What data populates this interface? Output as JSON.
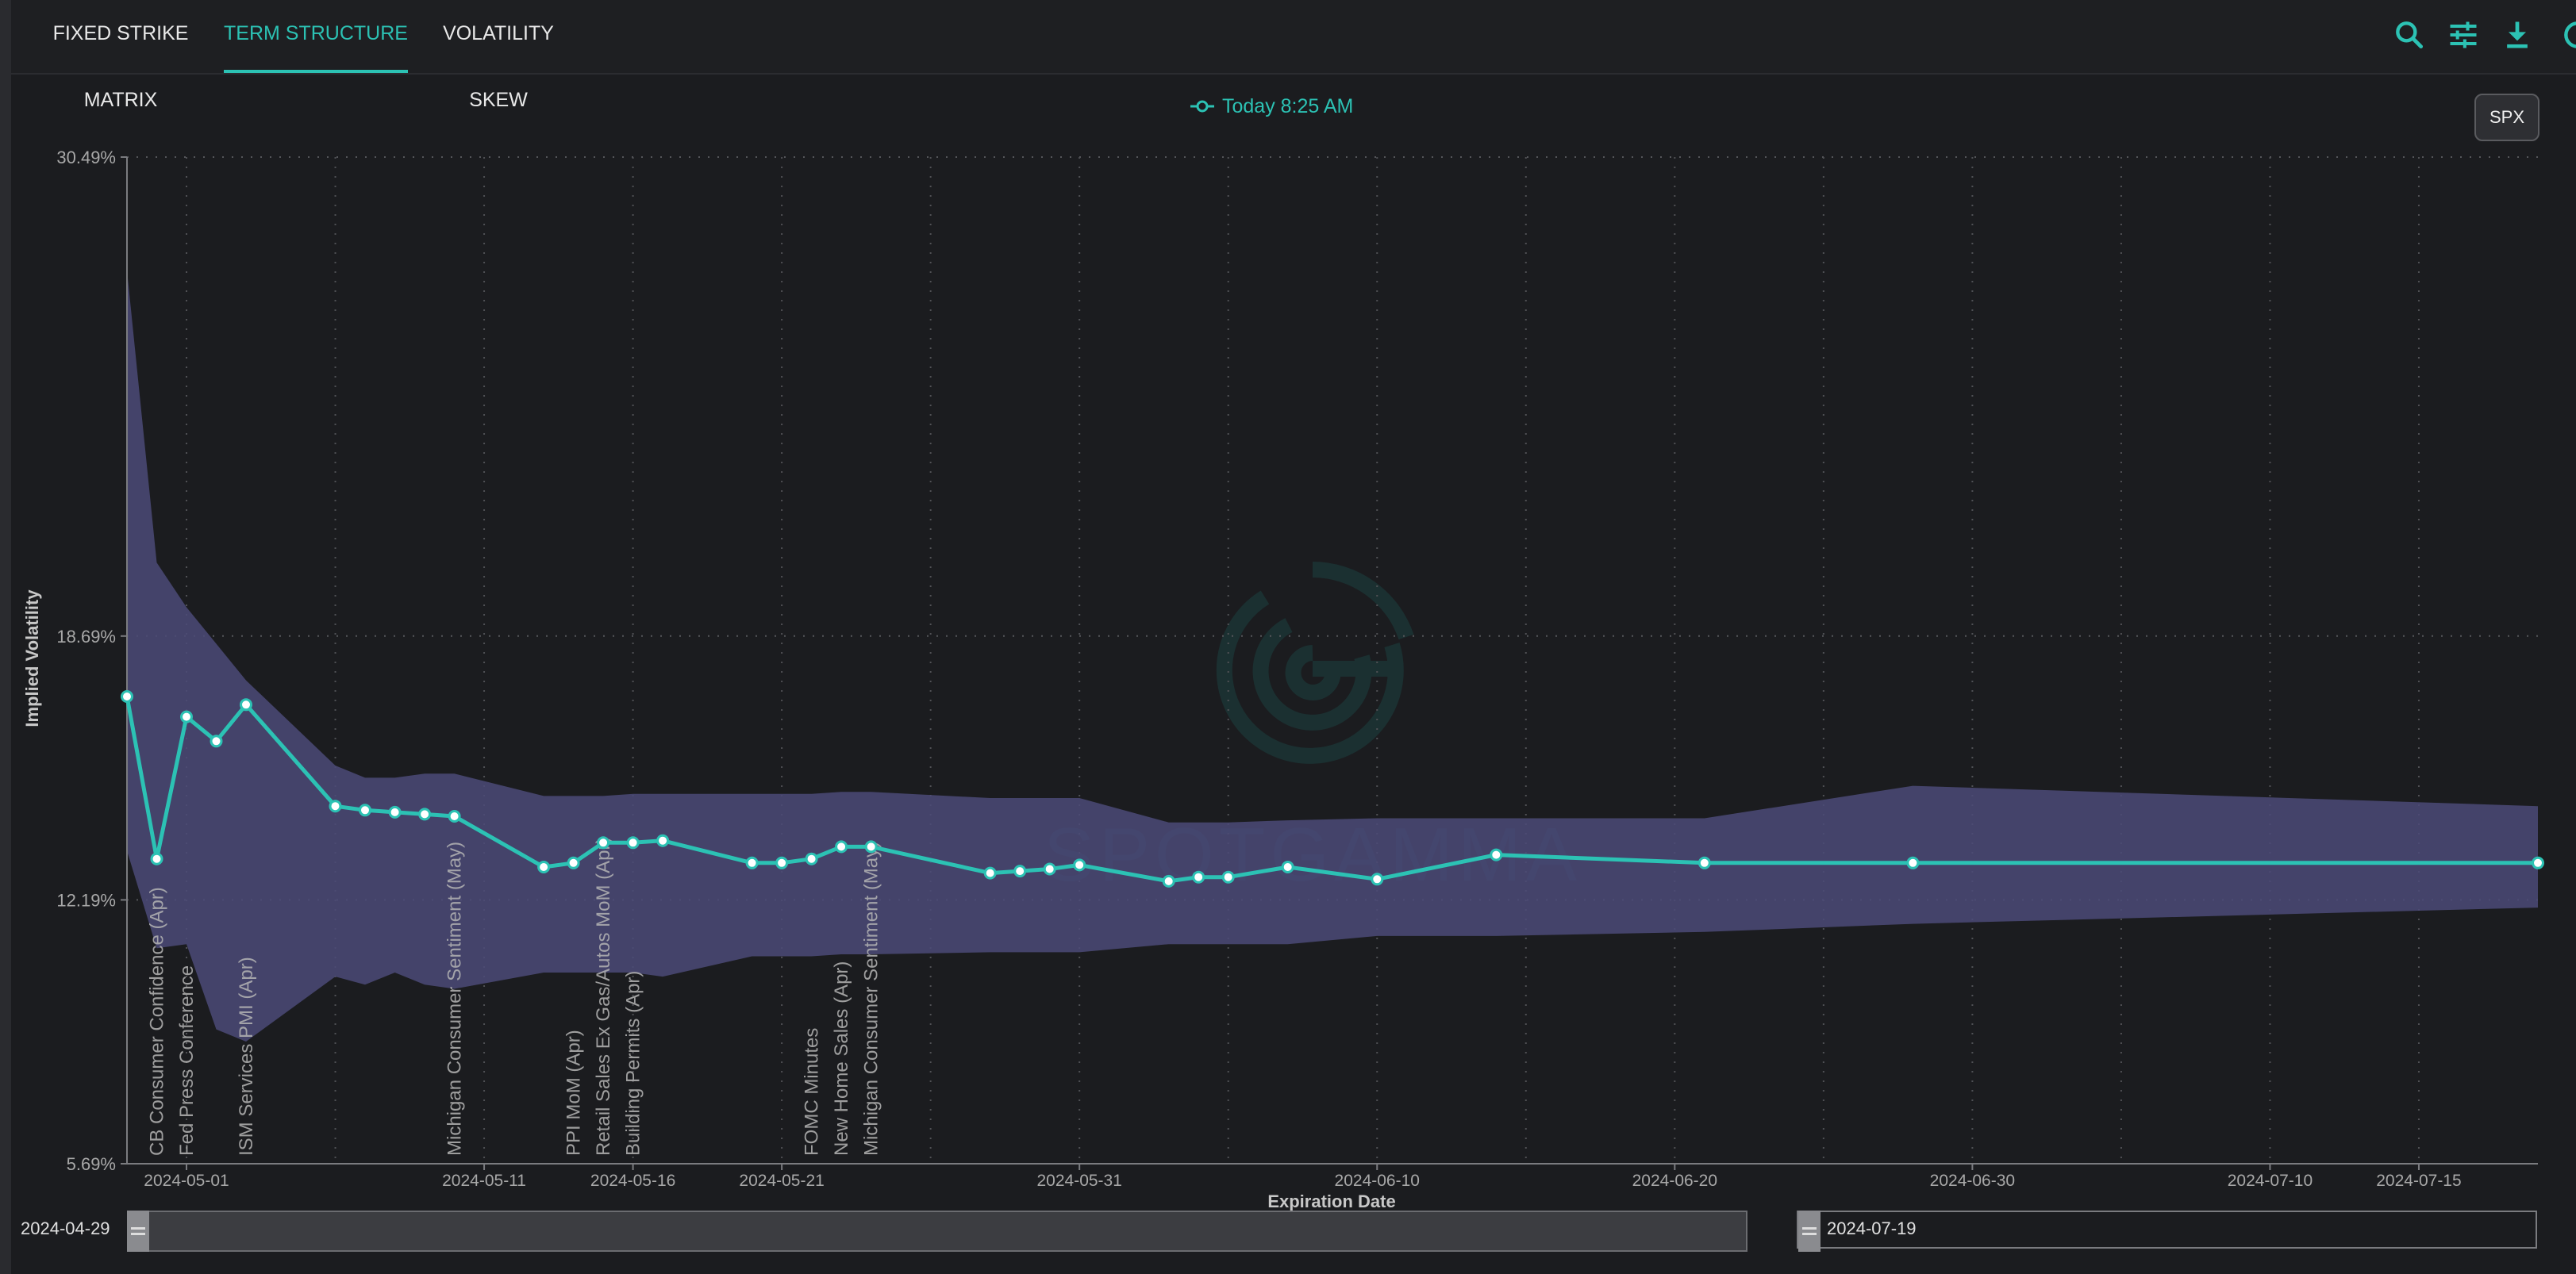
{
  "tabs": [
    {
      "label": "FIXED STRIKE MATRIX",
      "active": false
    },
    {
      "label": "TERM STRUCTURE",
      "active": true
    },
    {
      "label": "VOLATILITY SKEW",
      "active": false
    }
  ],
  "toolbar": {
    "icons": [
      "search-icon",
      "sliders-icon",
      "download-icon",
      "refresh-icon"
    ]
  },
  "legend": {
    "series_label": "Today 8:25 AM"
  },
  "ticker_button": "SPX",
  "watermark": "SPOTGAMMA",
  "range_slider": {
    "start": "2024-04-29",
    "end": "2024-07-19"
  },
  "colors": {
    "accent": "#2cc2b4",
    "band": "#4b4a78",
    "background": "#1b1c1f"
  },
  "chart_data": {
    "type": "line",
    "xlabel": "Expiration Date",
    "ylabel": "Implied Volatility",
    "x_range": [
      "2024-04-29",
      "2024-07-19"
    ],
    "y_range": [
      5.69,
      30.49
    ],
    "y_ticks": [
      "5.69%",
      "12.19%",
      "18.69%",
      "30.49%"
    ],
    "y_tick_values": [
      5.69,
      12.19,
      18.69,
      30.49
    ],
    "x_ticks": [
      {
        "date": "2024-05-01",
        "label": "2024-05-01"
      },
      {
        "date": "2024-05-11",
        "label": "2024-05-11"
      },
      {
        "date": "2024-05-16",
        "label": "2024-05-16"
      },
      {
        "date": "2024-05-21",
        "label": "2024-05-21"
      },
      {
        "date": "2024-05-31",
        "label": "2024-05-31"
      },
      {
        "date": "2024-06-10",
        "label": "2024-06-10"
      },
      {
        "date": "2024-06-20",
        "label": "2024-06-20"
      },
      {
        "date": "2024-06-30",
        "label": "2024-06-30"
      },
      {
        "date": "2024-07-10",
        "label": "2024-07-10"
      },
      {
        "date": "2024-07-15",
        "label": "2024-07-15"
      }
    ],
    "grid": true,
    "series": [
      {
        "name": "Today 8:25 AM",
        "x": [
          "2024-04-29",
          "2024-04-30",
          "2024-05-01",
          "2024-05-02",
          "2024-05-03",
          "2024-05-06",
          "2024-05-07",
          "2024-05-08",
          "2024-05-09",
          "2024-05-10",
          "2024-05-13",
          "2024-05-14",
          "2024-05-15",
          "2024-05-16",
          "2024-05-17",
          "2024-05-20",
          "2024-05-21",
          "2024-05-22",
          "2024-05-23",
          "2024-05-24",
          "2024-05-28",
          "2024-05-29",
          "2024-05-30",
          "2024-05-31",
          "2024-06-03",
          "2024-06-04",
          "2024-06-05",
          "2024-06-07",
          "2024-06-10",
          "2024-06-14",
          "2024-06-21",
          "2024-06-28",
          "2024-07-19"
        ],
        "values": [
          17.2,
          13.2,
          16.7,
          16.1,
          17.0,
          14.5,
          14.4,
          14.35,
          14.3,
          14.25,
          13.0,
          13.1,
          13.6,
          13.6,
          13.65,
          13.1,
          13.1,
          13.2,
          13.5,
          13.5,
          12.85,
          12.9,
          12.95,
          13.05,
          12.65,
          12.75,
          12.75,
          13.0,
          12.7,
          13.3,
          13.1,
          13.1,
          13.1
        ]
      }
    ],
    "band": {
      "x": [
        "2024-04-29",
        "2024-04-30",
        "2024-05-01",
        "2024-05-02",
        "2024-05-03",
        "2024-05-06",
        "2024-05-07",
        "2024-05-08",
        "2024-05-09",
        "2024-05-10",
        "2024-05-13",
        "2024-05-14",
        "2024-05-15",
        "2024-05-16",
        "2024-05-17",
        "2024-05-20",
        "2024-05-21",
        "2024-05-22",
        "2024-05-23",
        "2024-05-24",
        "2024-05-28",
        "2024-05-29",
        "2024-05-30",
        "2024-05-31",
        "2024-06-03",
        "2024-06-04",
        "2024-06-05",
        "2024-06-07",
        "2024-06-10",
        "2024-06-14",
        "2024-06-21",
        "2024-06-28",
        "2024-07-19"
      ],
      "upper": [
        27.7,
        20.5,
        19.4,
        18.5,
        17.6,
        15.5,
        15.2,
        15.2,
        15.3,
        15.3,
        14.75,
        14.75,
        14.75,
        14.8,
        14.8,
        14.8,
        14.8,
        14.8,
        14.85,
        14.85,
        14.7,
        14.7,
        14.7,
        14.7,
        14.1,
        14.1,
        14.1,
        14.15,
        14.2,
        14.2,
        14.2,
        15.0,
        14.5
      ],
      "lower": [
        13.4,
        11.0,
        11.1,
        9.0,
        8.7,
        10.3,
        10.1,
        10.4,
        10.1,
        10.0,
        10.4,
        10.4,
        10.4,
        10.4,
        10.3,
        10.8,
        10.8,
        10.8,
        10.85,
        10.85,
        10.9,
        10.9,
        10.9,
        10.9,
        11.1,
        11.1,
        11.1,
        11.1,
        11.3,
        11.3,
        11.4,
        11.6,
        12.0
      ]
    },
    "events": [
      {
        "date": "2024-04-30",
        "label": "CB Consumer Confidence (Apr)"
      },
      {
        "date": "2024-05-01",
        "label": "Fed Press Conference"
      },
      {
        "date": "2024-05-03",
        "label": "ISM Services PMI (Apr)"
      },
      {
        "date": "2024-05-10",
        "label": "Michigan Consumer Sentiment (May)"
      },
      {
        "date": "2024-05-14",
        "label": "PPI MoM (Apr)"
      },
      {
        "date": "2024-05-15",
        "label": "Retail Sales Ex Gas/Autos MoM (Apr)"
      },
      {
        "date": "2024-05-16",
        "label": "Building Permits (Apr)"
      },
      {
        "date": "2024-05-22",
        "label": "FOMC Minutes"
      },
      {
        "date": "2024-05-23",
        "label": "New Home Sales (Apr)"
      },
      {
        "date": "2024-05-24",
        "label": "Michigan Consumer Sentiment (May)"
      }
    ]
  }
}
